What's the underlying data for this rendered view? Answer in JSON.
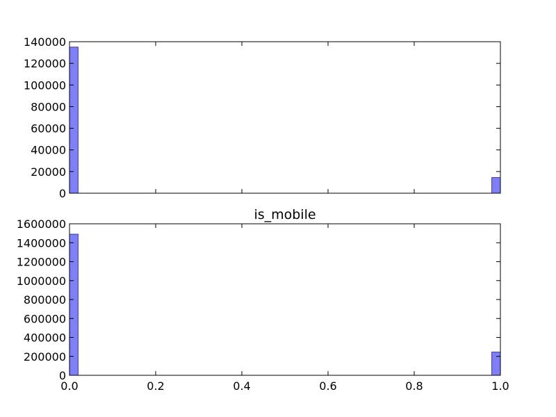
{
  "colors": {
    "bar_fill": "#7f7ff7",
    "bar_edge": "#3a3aa0",
    "axes": "#000000",
    "background": "#ffffff"
  },
  "chart_data": [
    {
      "type": "bar",
      "title": "",
      "xlabel": "",
      "ylabel": "",
      "bins": 50,
      "xlim": [
        0.0,
        1.0
      ],
      "ylim": [
        0,
        140000
      ],
      "yticks": [
        0,
        20000,
        40000,
        60000,
        80000,
        100000,
        120000,
        140000
      ],
      "ytick_labels": [
        "0",
        "20000",
        "40000",
        "60000",
        "80000",
        "100000",
        "120000",
        "140000"
      ],
      "xticks": [
        0.0,
        0.2,
        0.4,
        0.6,
        0.8,
        1.0
      ],
      "xtick_labels": [],
      "bars": [
        {
          "x0": 0.0,
          "x1": 0.02,
          "value": 135000
        },
        {
          "x0": 0.98,
          "x1": 1.0,
          "value": 14500
        }
      ],
      "grid": false
    },
    {
      "type": "bar",
      "title": "is_mobile",
      "xlabel": "",
      "ylabel": "",
      "bins": 50,
      "xlim": [
        0.0,
        1.0
      ],
      "ylim": [
        0,
        1600000
      ],
      "yticks": [
        0,
        200000,
        400000,
        600000,
        800000,
        1000000,
        1200000,
        1400000,
        1600000
      ],
      "ytick_labels": [
        "0",
        "200000",
        "400000",
        "600000",
        "800000",
        "1000000",
        "1200000",
        "1400000",
        "1600000"
      ],
      "xticks": [
        0.0,
        0.2,
        0.4,
        0.6,
        0.8,
        1.0
      ],
      "xtick_labels": [
        "0.0",
        "0.2",
        "0.4",
        "0.6",
        "0.8",
        "1.0"
      ],
      "bars": [
        {
          "x0": 0.0,
          "x1": 0.02,
          "value": 1490000
        },
        {
          "x0": 0.98,
          "x1": 1.0,
          "value": 245000
        }
      ],
      "grid": false
    }
  ]
}
